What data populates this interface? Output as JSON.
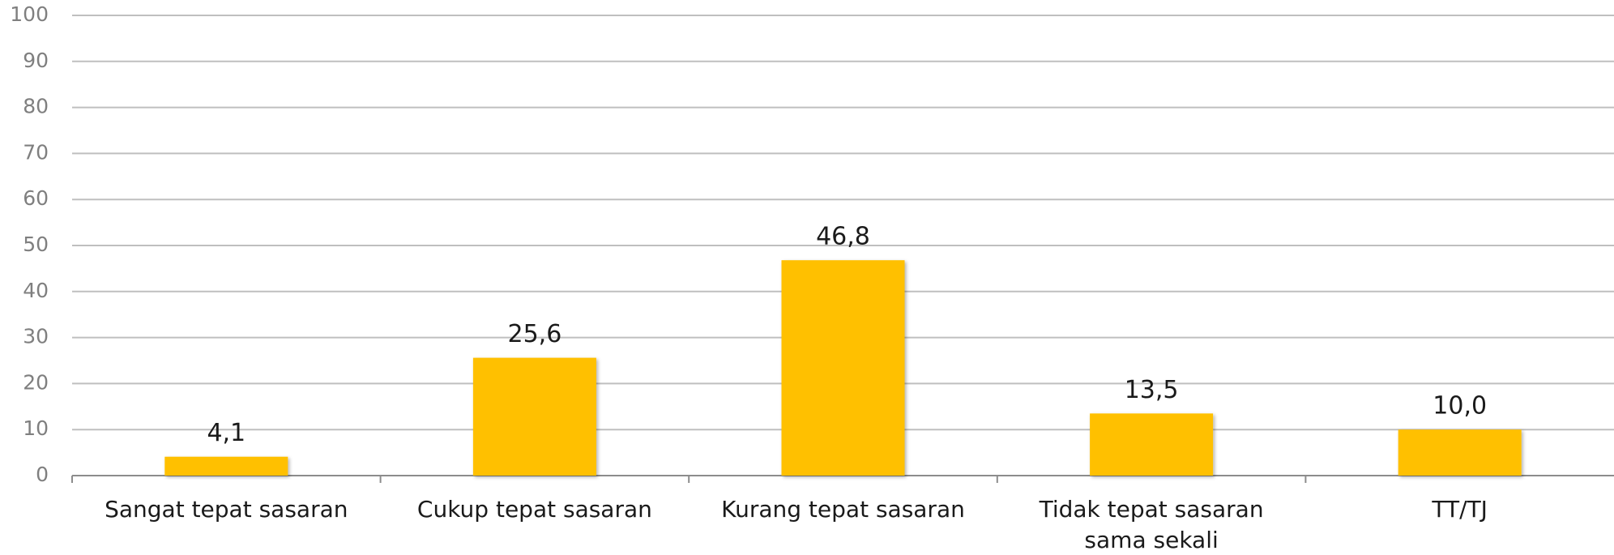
{
  "chart_data": {
    "type": "bar",
    "categories": [
      "Sangat tepat sasaran",
      "Cukup tepat sasaran",
      "Kurang tepat sasaran",
      "Tidak tepat sasaran sama sekali",
      "TT/TJ"
    ],
    "values": [
      4.1,
      25.6,
      46.8,
      13.5,
      10.0
    ],
    "value_labels": [
      "4,1",
      "25,6",
      "46,8",
      "13,5",
      "10,0"
    ],
    "color": "#ffc000",
    "ylim": [
      0,
      100
    ],
    "yticks": [
      0,
      10,
      20,
      30,
      40,
      50,
      60,
      70,
      80,
      90,
      100
    ],
    "grid": true
  }
}
